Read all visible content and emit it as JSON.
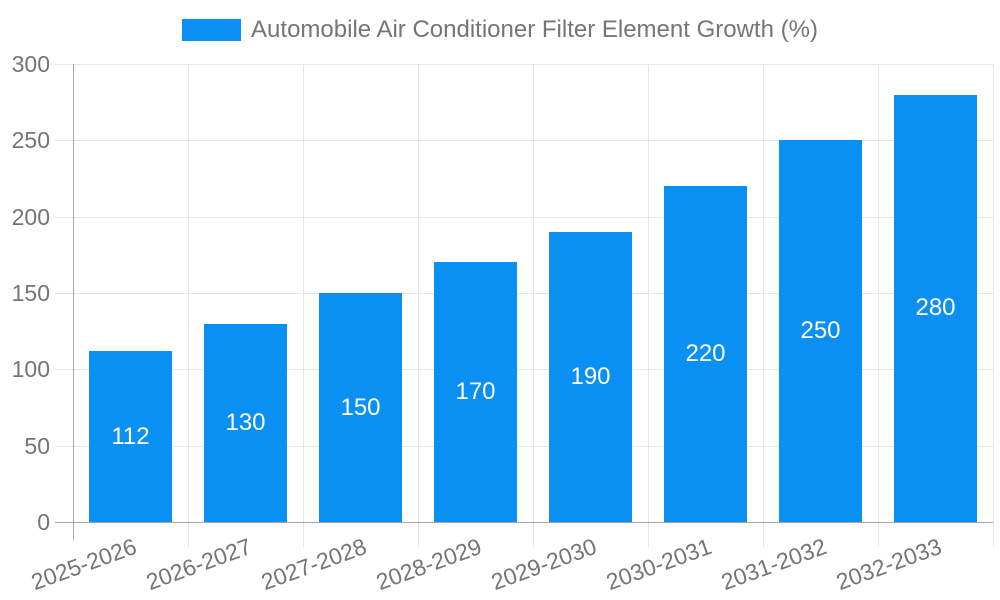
{
  "legend": {
    "label": "Automobile Air Conditioner Filter Element Growth (%)"
  },
  "colors": {
    "bar": "#0a90f2",
    "grid": "#e6e6e6",
    "axis": "#a6a6a6",
    "tick_text": "#757575",
    "value_text": "#ffffff",
    "background": "#ffffff"
  },
  "chart_data": {
    "type": "bar",
    "title": "Automobile Air Conditioner Filter Element Growth (%)",
    "categories": [
      "2025-2026",
      "2026-2027",
      "2027-2028",
      "2028-2029",
      "2029-2030",
      "2030-2031",
      "2031-2032",
      "2032-2033"
    ],
    "values": [
      112,
      130,
      150,
      170,
      190,
      220,
      250,
      280
    ],
    "xlabel": "",
    "ylabel": "",
    "ylim": [
      0,
      300
    ],
    "yticks": [
      0,
      50,
      100,
      150,
      200,
      250,
      300
    ],
    "grid": true,
    "legend_position": "top",
    "value_label_position": "inside-center",
    "x_label_rotation_deg": -20
  }
}
